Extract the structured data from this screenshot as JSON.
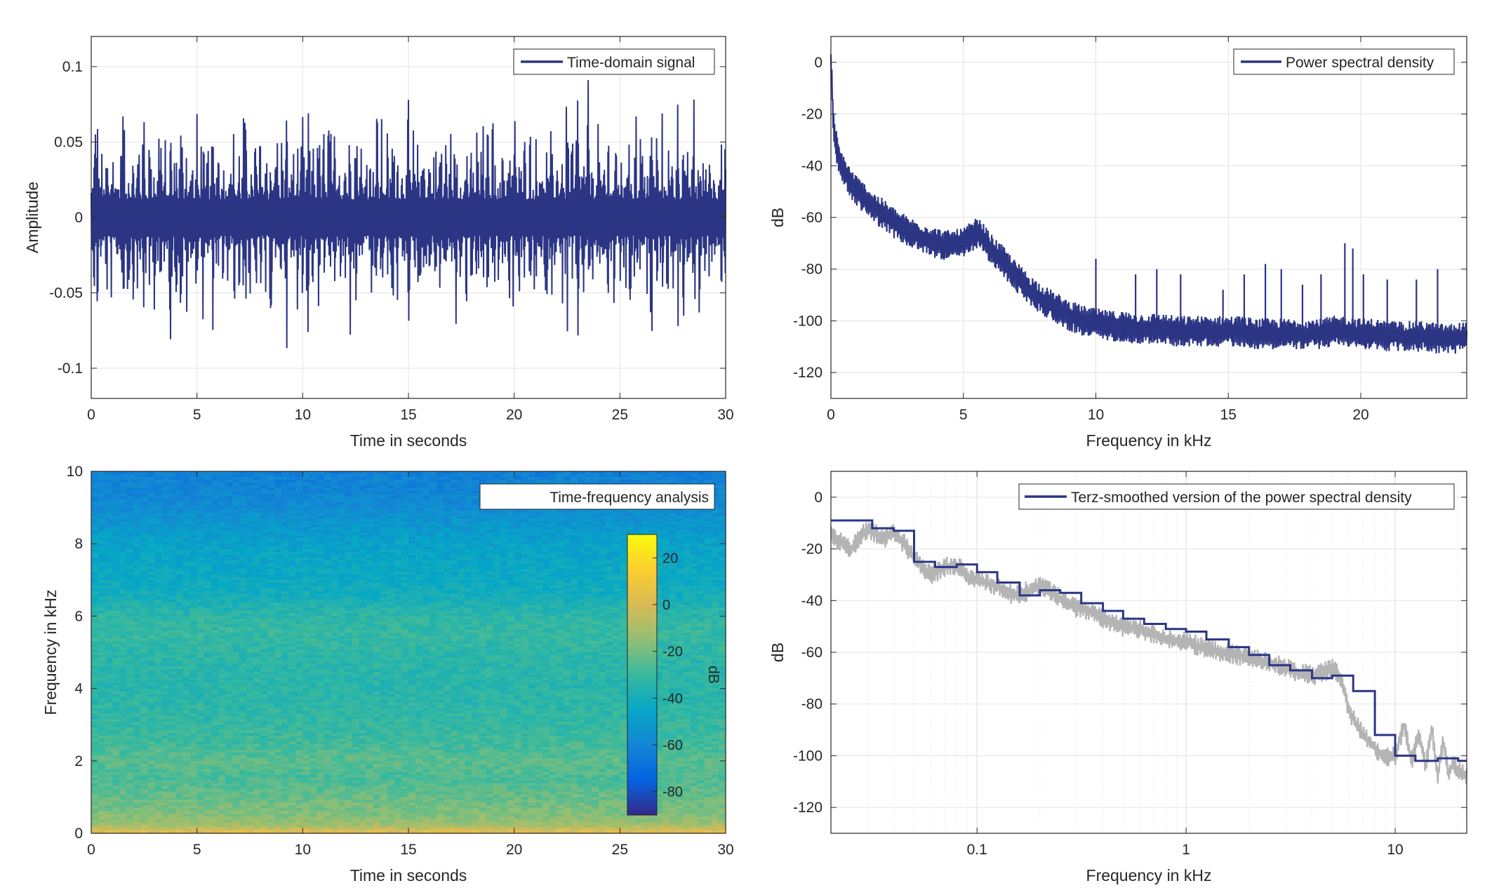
{
  "chart_data": [
    {
      "type": "line",
      "panel": "top-left",
      "title": "",
      "xlabel": "Time in seconds",
      "ylabel": "Amplitude",
      "xlim": [
        0,
        30
      ],
      "ylim": [
        -0.12,
        0.12
      ],
      "x_ticks": [
        0,
        5,
        10,
        15,
        20,
        25,
        30
      ],
      "y_ticks": [
        -0.1,
        -0.05,
        0,
        0.05,
        0.1
      ],
      "x_tick_labels": [
        "0",
        "5",
        "10",
        "15",
        "20",
        "25",
        "30"
      ],
      "y_tick_labels": [
        "-0.1",
        "-0.05",
        "0",
        "0.05",
        "0.1"
      ],
      "grid": true,
      "legend": {
        "position": "top-right",
        "entries": [
          "Time-domain signal"
        ]
      },
      "colors": {
        "series": "#2b3584"
      },
      "series": [
        {
          "name": "Time-domain signal",
          "x": [
            0,
            0.25,
            0.5,
            0.75,
            1,
            1.25,
            1.5,
            1.75,
            2,
            2.25,
            2.5,
            2.75,
            3,
            3.25,
            3.5,
            3.75,
            4,
            4.25,
            4.5,
            4.75,
            5,
            5.25,
            5.5,
            5.75,
            6,
            6.25,
            6.5,
            6.75,
            7,
            7.25,
            7.5,
            7.75,
            8,
            8.25,
            8.5,
            8.75,
            9,
            9.25,
            9.5,
            9.75,
            10,
            10.25,
            10.5,
            10.75,
            11,
            11.25,
            11.5,
            11.75,
            12,
            12.25,
            12.5,
            12.75,
            13,
            13.25,
            13.5,
            13.75,
            14,
            14.25,
            14.5,
            14.75,
            15,
            15.25,
            15.5,
            15.75,
            16,
            16.25,
            16.5,
            16.75,
            17,
            17.25,
            17.5,
            17.75,
            18,
            18.25,
            18.5,
            18.75,
            19,
            19.25,
            19.5,
            19.75,
            20,
            20.25,
            20.5,
            20.75,
            21,
            21.25,
            21.5,
            21.75,
            22,
            22.25,
            22.5,
            22.75,
            23,
            23.25,
            23.5,
            23.75,
            24,
            24.25,
            24.5,
            24.75,
            25,
            25.25,
            25.5,
            25.75,
            26,
            26.25,
            26.5,
            26.75,
            27,
            27.25,
            27.5,
            27.75,
            28,
            28.25,
            28.5,
            28.75,
            29,
            29.25,
            29.5,
            29.75,
            30
          ],
          "values": [
            0.01,
            -0.088,
            0.045,
            -0.05,
            0.07,
            -0.04,
            0.085,
            -0.06,
            0.05,
            -0.075,
            0.08,
            -0.065,
            0.06,
            -0.1,
            0.05,
            -0.07,
            0.065,
            -0.08,
            0.07,
            -0.055,
            0.06,
            -0.075,
            0.055,
            -0.065,
            0.07,
            -0.05,
            0.075,
            -0.06,
            0.05,
            -0.085,
            0.065,
            -0.07,
            0.055,
            -0.06,
            0.07,
            -0.08,
            0.06,
            -0.075,
            0.065,
            -0.05,
            0.07,
            -0.08,
            0.06,
            -0.065,
            0.055,
            -0.098,
            0.05,
            -0.06,
            0.07,
            -0.075,
            0.08,
            -0.055,
            0.06,
            -0.07,
            0.075,
            -0.065,
            0.05,
            -0.08,
            0.06,
            -0.055,
            0.07,
            -0.06,
            0.075,
            -0.07,
            0.055,
            -0.065,
            0.07,
            -0.06,
            0.05,
            -0.08,
            0.06,
            -0.07,
            0.055,
            -0.065,
            0.07,
            -0.06,
            0.075,
            -0.05,
            0.06,
            -0.07,
            0.08,
            -0.065,
            0.055,
            -0.06,
            0.065,
            -0.08,
            0.07,
            -0.055,
            0.06,
            -0.07,
            0.09,
            -0.06,
            0.095,
            -0.065,
            0.08,
            -0.07,
            0.07,
            -0.06,
            0.09,
            -0.075,
            0.06,
            -0.065,
            0.075,
            -0.08,
            0.07,
            -0.06,
            0.08,
            -0.07,
            0.065,
            -0.075,
            0.06,
            -0.085,
            0.07,
            -0.06,
            0.075,
            -0.065,
            0.06,
            -0.07,
            0.05,
            -0.065,
            0.05
          ]
        }
      ]
    },
    {
      "type": "line",
      "panel": "top-right",
      "title": "",
      "xlabel": "Frequency in kHz",
      "ylabel": "dB",
      "xlim": [
        0,
        24
      ],
      "ylim": [
        -130,
        10
      ],
      "x_ticks": [
        0,
        5,
        10,
        15,
        20
      ],
      "y_ticks": [
        -120,
        -100,
        -80,
        -60,
        -40,
        -20,
        0
      ],
      "x_tick_labels": [
        "0",
        "5",
        "10",
        "15",
        "20"
      ],
      "y_tick_labels": [
        "-120",
        "-100",
        "-80",
        "-60",
        "-40",
        "-20",
        "0"
      ],
      "grid": true,
      "legend": {
        "position": "top-right",
        "entries": [
          "Power spectral density"
        ]
      },
      "colors": {
        "series": "#2b3584"
      },
      "series": [
        {
          "name": "Power spectral density",
          "x": [
            0,
            0.05,
            0.1,
            0.2,
            0.3,
            0.5,
            0.75,
            1,
            1.5,
            2,
            2.5,
            3,
            3.5,
            4,
            4.5,
            5,
            5.25,
            5.5,
            5.75,
            6,
            6.5,
            7,
            7.5,
            8,
            8.5,
            9,
            9.5,
            10,
            10.5,
            11,
            11.5,
            12,
            12.5,
            13,
            13.5,
            14,
            14.5,
            15,
            15.5,
            16,
            16.5,
            17,
            17.5,
            18,
            18.5,
            19,
            19.5,
            20,
            20.5,
            21,
            21.5,
            22,
            22.5,
            23,
            23.5,
            24
          ],
          "values": [
            0,
            -12,
            -25,
            -32,
            -38,
            -42,
            -47,
            -50,
            -55,
            -59,
            -63,
            -66,
            -68,
            -70,
            -71,
            -70,
            -68,
            -66,
            -68,
            -72,
            -77,
            -83,
            -88,
            -92,
            -95,
            -98,
            -100,
            -101,
            -102,
            -102,
            -103,
            -103,
            -103,
            -104,
            -104,
            -104,
            -104,
            -104,
            -104,
            -105,
            -105,
            -105,
            -105,
            -105,
            -105,
            -104,
            -104,
            -105,
            -105,
            -106,
            -106,
            -106,
            -106,
            -107,
            -107,
            -106
          ]
        }
      ],
      "spikes": {
        "x": [
          10,
          11.5,
          12.3,
          13.2,
          14.8,
          15.6,
          16.4,
          17.0,
          17.8,
          18.5,
          19.4,
          19.7,
          20.1,
          21.0,
          22.1,
          22.9
        ],
        "values": [
          -76,
          -82,
          -80,
          -82,
          -88,
          -82,
          -78,
          -80,
          -86,
          -82,
          -70,
          -72,
          -82,
          -84,
          -84,
          -80
        ]
      }
    },
    {
      "type": "heatmap",
      "panel": "bottom-left",
      "title": "",
      "xlabel": "Time in seconds",
      "ylabel": "Frequency in kHz",
      "xlim": [
        0,
        30
      ],
      "ylim": [
        0,
        10
      ],
      "x_ticks": [
        0,
        5,
        10,
        15,
        20,
        25,
        30
      ],
      "y_ticks": [
        0,
        2,
        4,
        6,
        8,
        10
      ],
      "x_tick_labels": [
        "0",
        "5",
        "10",
        "15",
        "20",
        "25",
        "30"
      ],
      "y_tick_labels": [
        "0",
        "2",
        "4",
        "6",
        "8",
        "10"
      ],
      "legend": {
        "position": "top-right",
        "entries": [
          "Time-frequency analysis"
        ]
      },
      "colorbar": {
        "label": "dB",
        "clim": [
          -90,
          30
        ],
        "ticks": [
          -80,
          -60,
          -40,
          -20,
          0,
          20
        ],
        "tick_labels": [
          "-80",
          "-60",
          "-40",
          "-20",
          "0",
          "20"
        ],
        "colormap": "parula",
        "colors": [
          "#352a87",
          "#0363e1",
          "#1485d4",
          "#06a7c6",
          "#38b99e",
          "#92bf73",
          "#d9ba56",
          "#fcce2e",
          "#f9fb0e"
        ]
      },
      "frequency_profile": {
        "frequency_khz": [
          0,
          0.1,
          0.2,
          0.3,
          0.5,
          0.75,
          1,
          1.5,
          2,
          2.5,
          3,
          3.5,
          4,
          4.5,
          5,
          5.5,
          6,
          6.5,
          7,
          7.5,
          8,
          8.5,
          9,
          9.5,
          10
        ],
        "level_db": [
          5,
          -2,
          -10,
          -14,
          -17,
          -20,
          -22,
          -27,
          -24,
          -29,
          -31,
          -33,
          -34,
          -34,
          -33,
          -31,
          -33,
          -40,
          -43,
          -45,
          -47,
          -52,
          -57,
          -60,
          -62
        ]
      }
    },
    {
      "type": "line",
      "panel": "bottom-right",
      "title": "",
      "xlabel": "Frequency in kHz",
      "ylabel": "dB",
      "xscale": "log",
      "xlim": [
        0.02,
        22
      ],
      "ylim": [
        -130,
        10
      ],
      "x_ticks": [
        0.1,
        1,
        10
      ],
      "y_ticks": [
        -120,
        -100,
        -80,
        -60,
        -40,
        -20,
        0
      ],
      "x_tick_labels": [
        "0.1",
        "1",
        "10"
      ],
      "y_tick_labels": [
        "-120",
        "-100",
        "-80",
        "-60",
        "-40",
        "-20",
        "0"
      ],
      "grid": true,
      "legend": {
        "position": "top-right",
        "entries": [
          "Terz-smoothed version of the power spectral density"
        ]
      },
      "colors": {
        "smoothed": "#2b3584",
        "raw": "#b4b4b4"
      },
      "series": [
        {
          "name": "raw",
          "x": [
            0.02,
            0.025,
            0.03,
            0.035,
            0.04,
            0.045,
            0.05,
            0.06,
            0.07,
            0.08,
            0.09,
            0.1,
            0.12,
            0.15,
            0.18,
            0.2,
            0.25,
            0.3,
            0.35,
            0.4,
            0.5,
            0.6,
            0.7,
            0.8,
            1,
            1.2,
            1.5,
            2,
            2.5,
            3,
            3.5,
            4,
            4.5,
            5,
            5.5,
            6,
            6.5,
            7,
            8,
            9,
            10,
            11,
            12,
            13,
            14,
            15,
            16,
            17,
            18,
            19,
            20,
            21,
            22
          ],
          "values": [
            -15,
            -20,
            -12,
            -16,
            -14,
            -18,
            -24,
            -30,
            -27,
            -26,
            -31,
            -32,
            -34,
            -38,
            -36,
            -34,
            -39,
            -43,
            -44,
            -47,
            -50,
            -51,
            -53,
            -55,
            -56,
            -58,
            -60,
            -62,
            -64,
            -66,
            -68,
            -69,
            -68,
            -66,
            -70,
            -82,
            -88,
            -92,
            -97,
            -101,
            -100,
            -88,
            -102,
            -92,
            -104,
            -90,
            -108,
            -95,
            -108,
            -102,
            -106,
            -107,
            -108
          ]
        },
        {
          "name": "smoothed",
          "x": [
            0.02,
            0.025,
            0.0315,
            0.04,
            0.05,
            0.063,
            0.08,
            0.1,
            0.125,
            0.16,
            0.2,
            0.25,
            0.315,
            0.4,
            0.5,
            0.63,
            0.8,
            1,
            1.25,
            1.6,
            2,
            2.5,
            3.15,
            4,
            5,
            6.3,
            8,
            10,
            12.5,
            16,
            20,
            22
          ],
          "values": [
            -9,
            -9,
            -12,
            -13,
            -25,
            -27,
            -26,
            -29,
            -33,
            -38,
            -36,
            -37,
            -41,
            -44,
            -47,
            -49,
            -51,
            -52,
            -55,
            -58,
            -61,
            -65,
            -67,
            -70,
            -69,
            -75,
            -92,
            -100,
            -102,
            -101,
            -102,
            -102
          ]
        }
      ]
    }
  ]
}
